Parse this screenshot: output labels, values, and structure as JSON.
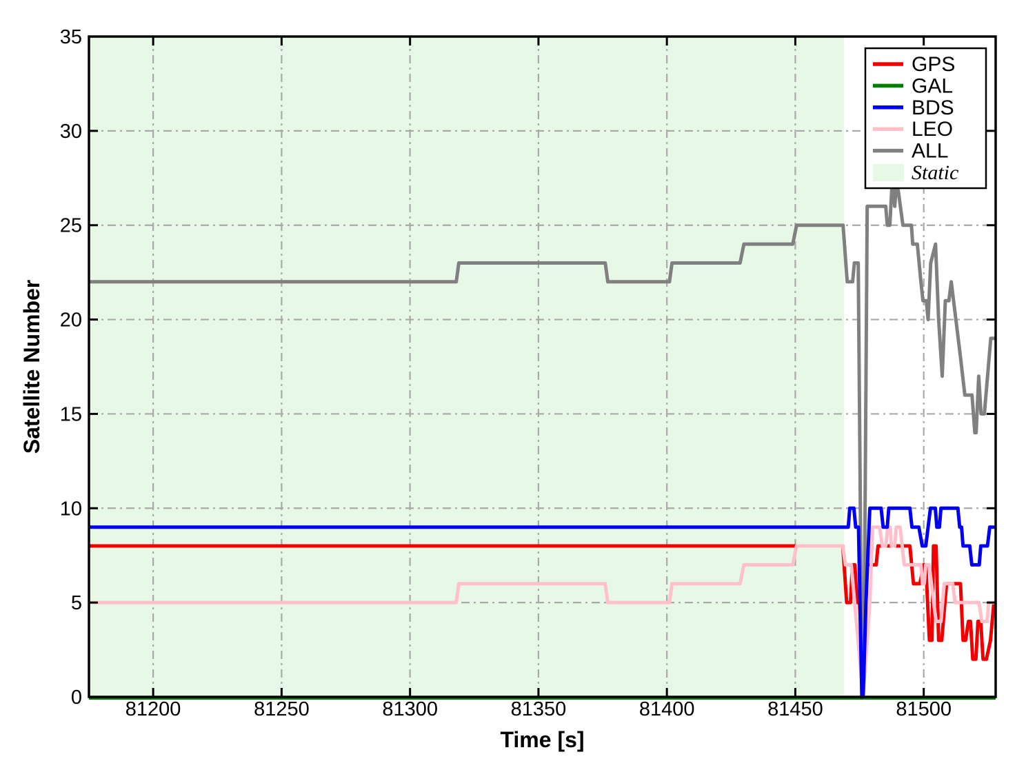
{
  "chart_data": {
    "type": "line",
    "title": "",
    "xlabel": "Time [s]",
    "ylabel": "Satellite Number",
    "xlim": [
      81175,
      81528
    ],
    "ylim": [
      0,
      35
    ],
    "xticks": [
      81200,
      81250,
      81300,
      81350,
      81400,
      81450,
      81500
    ],
    "yticks": [
      0,
      5,
      10,
      15,
      20,
      25,
      30,
      35
    ],
    "grid": true,
    "grid_style": "dash-dot",
    "grid_color": "#a9a9a9",
    "legend_position": "upper right",
    "static_region": {
      "label": "Static",
      "x_start": 81175,
      "x_end": 81469,
      "color": "#e8f8e6"
    },
    "series": [
      {
        "name": "GPS",
        "color": "#f20000",
        "width": 5,
        "points": [
          [
            81175,
            8
          ],
          [
            81468.5,
            8
          ],
          [
            81470,
            5
          ],
          [
            81471.5,
            5
          ],
          [
            81472.2,
            7
          ],
          [
            81473.2,
            7
          ],
          [
            81474,
            5
          ],
          [
            81475,
            5
          ],
          [
            81476.3,
            1
          ],
          [
            81478,
            7
          ],
          [
            81481.5,
            7
          ],
          [
            81482.2,
            8
          ],
          [
            81494.6,
            8
          ],
          [
            81496,
            6
          ],
          [
            81498.5,
            6
          ],
          [
            81500,
            7
          ],
          [
            81500.8,
            7
          ],
          [
            81502.2,
            3
          ],
          [
            81503.2,
            3
          ],
          [
            81503.8,
            8
          ],
          [
            81504.8,
            8
          ],
          [
            81505.8,
            3
          ],
          [
            81507,
            3
          ],
          [
            81508.9,
            6
          ],
          [
            81514.3,
            6
          ],
          [
            81515.3,
            3
          ],
          [
            81516.3,
            3
          ],
          [
            81517.4,
            4
          ],
          [
            81518.2,
            4
          ],
          [
            81519.1,
            2
          ],
          [
            81520.3,
            2
          ],
          [
            81521.1,
            4
          ],
          [
            81522.2,
            4
          ],
          [
            81523.1,
            2
          ],
          [
            81524.4,
            2
          ],
          [
            81526,
            3
          ],
          [
            81527.3,
            5
          ],
          [
            81528,
            5
          ]
        ]
      },
      {
        "name": "GAL",
        "color": "#008000",
        "width": 5,
        "points": [
          [
            81175,
            0
          ],
          [
            81528,
            0
          ]
        ]
      },
      {
        "name": "BDS",
        "color": "#0000f2",
        "width": 5,
        "points": [
          [
            81175,
            9
          ],
          [
            81470.6,
            9
          ],
          [
            81471.2,
            10
          ],
          [
            81472.8,
            10
          ],
          [
            81473.5,
            9
          ],
          [
            81474.6,
            9
          ],
          [
            81475.9,
            0
          ],
          [
            81476.4,
            0
          ],
          [
            81477.5,
            5
          ],
          [
            81479,
            10
          ],
          [
            81483.4,
            10
          ],
          [
            81484.2,
            9
          ],
          [
            81485.8,
            9
          ],
          [
            81486.4,
            10
          ],
          [
            81494.6,
            10
          ],
          [
            81495.4,
            9
          ],
          [
            81498.1,
            9
          ],
          [
            81499.4,
            8
          ],
          [
            81500.8,
            8
          ],
          [
            81502.6,
            10
          ],
          [
            81504.5,
            10
          ],
          [
            81505.1,
            9
          ],
          [
            81506.1,
            9
          ],
          [
            81506.7,
            10
          ],
          [
            81513.3,
            10
          ],
          [
            81514,
            9
          ],
          [
            81514.7,
            9
          ],
          [
            81515.3,
            8
          ],
          [
            81517.9,
            8
          ],
          [
            81518.7,
            7
          ],
          [
            81521.6,
            7
          ],
          [
            81522.2,
            8
          ],
          [
            81524.8,
            8
          ],
          [
            81525.7,
            9
          ],
          [
            81528,
            9
          ]
        ]
      },
      {
        "name": "LEO",
        "color": "#ffc0cb",
        "width": 5,
        "points": [
          [
            81175,
            5
          ],
          [
            81318,
            5
          ],
          [
            81319,
            6
          ],
          [
            81376,
            6
          ],
          [
            81377,
            5
          ],
          [
            81401,
            5
          ],
          [
            81402,
            6
          ],
          [
            81428.5,
            6
          ],
          [
            81430,
            7
          ],
          [
            81449,
            7
          ],
          [
            81450.5,
            8
          ],
          [
            81468.5,
            8
          ],
          [
            81469.5,
            7
          ],
          [
            81471.8,
            7
          ],
          [
            81476.4,
            0
          ],
          [
            81479,
            5
          ],
          [
            81480.1,
            9
          ],
          [
            81482.8,
            9
          ],
          [
            81483.9,
            8
          ],
          [
            81485.2,
            8
          ],
          [
            81486,
            9
          ],
          [
            81486.9,
            9
          ],
          [
            81487.4,
            8
          ],
          [
            81488.7,
            8
          ],
          [
            81489.3,
            9
          ],
          [
            81490.8,
            9
          ],
          [
            81492.4,
            7
          ],
          [
            81498.9,
            7
          ],
          [
            81499.5,
            6
          ],
          [
            81500.2,
            6
          ],
          [
            81500.8,
            7
          ],
          [
            81502.1,
            7
          ],
          [
            81504.8,
            4
          ],
          [
            81506.7,
            4
          ],
          [
            81508,
            6
          ],
          [
            81511.3,
            6
          ],
          [
            81512.2,
            5
          ],
          [
            81521.5,
            5
          ],
          [
            81522.6,
            4
          ],
          [
            81524.7,
            4
          ],
          [
            81525.3,
            5
          ],
          [
            81528,
            5
          ]
        ]
      },
      {
        "name": "ALL",
        "color": "#808080",
        "width": 5,
        "points": [
          [
            81175,
            22
          ],
          [
            81318,
            22
          ],
          [
            81319,
            23
          ],
          [
            81376,
            23
          ],
          [
            81377,
            22
          ],
          [
            81401,
            22
          ],
          [
            81402,
            23
          ],
          [
            81428.5,
            23
          ],
          [
            81430,
            24
          ],
          [
            81449,
            24
          ],
          [
            81450.5,
            25
          ],
          [
            81468.6,
            25
          ],
          [
            81470.2,
            22
          ],
          [
            81472.3,
            22
          ],
          [
            81473,
            23
          ],
          [
            81474.5,
            23
          ],
          [
            81475.9,
            1
          ],
          [
            81476.7,
            1
          ],
          [
            81478,
            26
          ],
          [
            81485.2,
            26
          ],
          [
            81485.8,
            25
          ],
          [
            81486.8,
            25
          ],
          [
            81487.6,
            27
          ],
          [
            81488.2,
            27
          ],
          [
            81488.7,
            26
          ],
          [
            81489.3,
            27
          ],
          [
            81489.9,
            27
          ],
          [
            81491.9,
            25
          ],
          [
            81495.2,
            25
          ],
          [
            81495.7,
            24
          ],
          [
            81497.5,
            24
          ],
          [
            81498.9,
            22
          ],
          [
            81499.7,
            21
          ],
          [
            81501,
            21
          ],
          [
            81501.7,
            20
          ],
          [
            81502.7,
            23
          ],
          [
            81504.6,
            24
          ],
          [
            81505.8,
            20
          ],
          [
            81507.2,
            17
          ],
          [
            81508.4,
            21
          ],
          [
            81509.8,
            21
          ],
          [
            81510.7,
            22
          ],
          [
            81512.5,
            20
          ],
          [
            81514.3,
            18
          ],
          [
            81516,
            16
          ],
          [
            81518.8,
            16
          ],
          [
            81519.9,
            14
          ],
          [
            81520.4,
            14
          ],
          [
            81521.4,
            17
          ],
          [
            81522.3,
            15
          ],
          [
            81523.6,
            15
          ],
          [
            81526.1,
            19
          ],
          [
            81528,
            19
          ]
        ]
      }
    ]
  },
  "legend": {
    "entries": [
      {
        "label": "GPS",
        "swatch": "line",
        "color": "#f20000"
      },
      {
        "label": "GAL",
        "swatch": "line",
        "color": "#008000"
      },
      {
        "label": "BDS",
        "swatch": "line",
        "color": "#0000f2"
      },
      {
        "label": "LEO",
        "swatch": "line",
        "color": "#ffc0cb"
      },
      {
        "label": "ALL",
        "swatch": "line",
        "color": "#808080"
      },
      {
        "label": "Static",
        "swatch": "patch",
        "color": "#e8f8e6",
        "italic": true
      }
    ]
  }
}
